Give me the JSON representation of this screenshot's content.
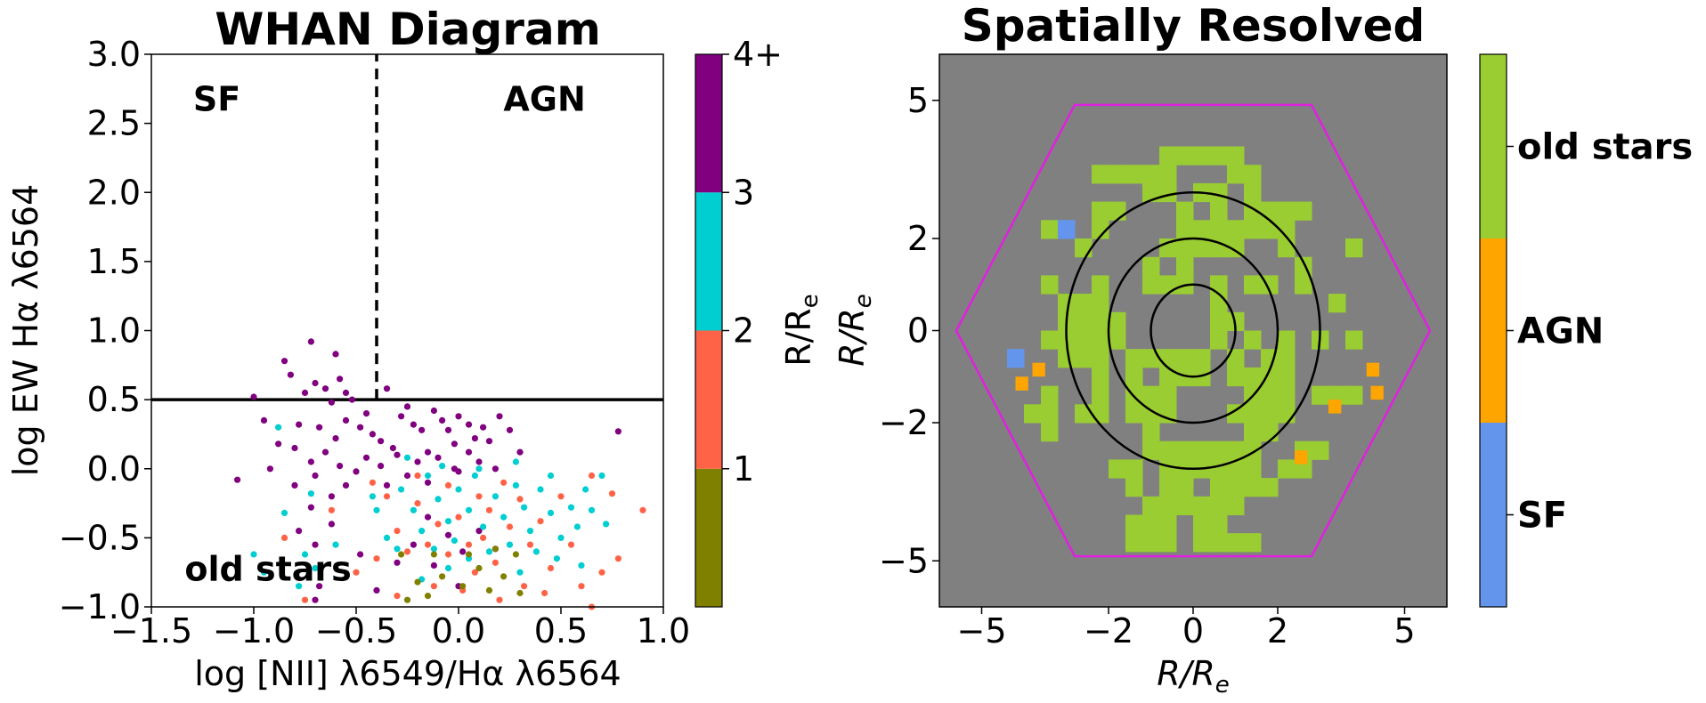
{
  "chart_data": [
    {
      "type": "scatter",
      "title": "WHAN Diagram",
      "xlabel": "log [NII] λ6549/Hα λ6564",
      "ylabel": "log EW Hα λ6564",
      "xlim": [
        -1.5,
        1.0
      ],
      "ylim": [
        -1.0,
        3.0
      ],
      "x_ticks": [
        "−1.5",
        "−1.0",
        "−0.5",
        "0.0",
        "0.5",
        "1.0"
      ],
      "x_tick_values": [
        -1.5,
        -1.0,
        -0.5,
        0.0,
        0.5,
        1.0
      ],
      "y_ticks": [
        "−1.0",
        "−0.5",
        "0.0",
        "0.5",
        "1.0",
        "1.5",
        "2.0",
        "2.5",
        "3.0"
      ],
      "y_tick_values": [
        -1.0,
        -0.5,
        0.0,
        0.5,
        1.0,
        1.5,
        2.0,
        2.5,
        3.0
      ],
      "grid": false,
      "annotations": [
        {
          "text": "SF",
          "color": "#6495ED",
          "x": -1.18,
          "y": 2.68
        },
        {
          "text": "AGN",
          "color": "#FFA500",
          "x": 0.42,
          "y": 2.68
        },
        {
          "text": "old stars",
          "color": "#9ACD32",
          "x": -0.93,
          "y": -0.72
        }
      ],
      "reference_lines": [
        {
          "orientation": "horizontal",
          "y": 0.5,
          "style": "solid"
        },
        {
          "orientation": "vertical",
          "x": -0.4,
          "ylim": [
            0.5,
            3.0
          ],
          "style": "dashed"
        }
      ],
      "colorbar": {
        "label": "R/R_e",
        "colors": [
          "#808000",
          "#FF6347",
          "#00CED1",
          "#800080"
        ],
        "tick_labels": [
          "1",
          "2",
          "3",
          "4+"
        ]
      },
      "series": [
        {
          "color": "#800080",
          "points": [
            [
              -0.72,
              0.92
            ],
            [
              -0.6,
              0.83
            ],
            [
              -0.85,
              0.78
            ],
            [
              -0.82,
              0.68
            ],
            [
              -0.7,
              0.62
            ],
            [
              -0.65,
              0.58
            ],
            [
              -0.58,
              0.65
            ],
            [
              -0.55,
              0.55
            ],
            [
              -0.75,
              0.55
            ],
            [
              -0.62,
              0.48
            ],
            [
              -0.52,
              0.5
            ],
            [
              -0.45,
              0.4
            ],
            [
              -0.35,
              0.58
            ],
            [
              -0.25,
              0.45
            ],
            [
              -1.0,
              0.52
            ],
            [
              -0.95,
              0.35
            ],
            [
              -0.78,
              0.32
            ],
            [
              -0.68,
              0.3
            ],
            [
              -0.6,
              0.22
            ],
            [
              -0.55,
              0.35
            ],
            [
              -0.48,
              0.3
            ],
            [
              -0.42,
              0.25
            ],
            [
              -0.38,
              0.2
            ],
            [
              -0.32,
              0.15
            ],
            [
              -0.28,
              0.38
            ],
            [
              -0.22,
              0.32
            ],
            [
              -0.18,
              0.28
            ],
            [
              -0.12,
              0.42
            ],
            [
              -0.08,
              0.35
            ],
            [
              -0.05,
              0.28
            ],
            [
              0.0,
              0.38
            ],
            [
              0.05,
              0.32
            ],
            [
              0.08,
              0.22
            ],
            [
              0.12,
              0.3
            ],
            [
              0.15,
              0.2
            ],
            [
              0.2,
              0.38
            ],
            [
              0.25,
              0.28
            ],
            [
              0.05,
              0.12
            ],
            [
              -0.02,
              0.18
            ],
            [
              -0.15,
              0.12
            ],
            [
              -0.2,
              0.05
            ],
            [
              -0.3,
              0.1
            ],
            [
              -0.38,
              0.02
            ],
            [
              -0.45,
              0.08
            ],
            [
              -0.5,
              -0.02
            ],
            [
              -0.58,
              0.02
            ],
            [
              -0.65,
              0.12
            ],
            [
              -0.72,
              0.05
            ],
            [
              -0.8,
              0.15
            ],
            [
              -0.88,
              0.18
            ],
            [
              -1.08,
              -0.08
            ],
            [
              -0.92,
              0.0
            ],
            [
              -0.8,
              -0.12
            ],
            [
              -0.7,
              -0.05
            ],
            [
              -0.62,
              -0.2
            ],
            [
              -0.55,
              -0.12
            ],
            [
              -0.1,
              0.08
            ],
            [
              0.1,
              0.05
            ],
            [
              0.18,
              0.0
            ],
            [
              -0.25,
              -0.05
            ],
            [
              -0.35,
              -0.12
            ],
            [
              -0.15,
              -0.1
            ],
            [
              0.0,
              -0.02
            ],
            [
              -0.72,
              -0.28
            ],
            [
              -0.78,
              -0.45
            ],
            [
              -0.7,
              -0.55
            ],
            [
              -0.62,
              -0.4
            ],
            [
              -0.15,
              -0.35
            ],
            [
              -0.05,
              -0.48
            ],
            [
              0.02,
              -0.6
            ],
            [
              -0.22,
              -0.55
            ],
            [
              -0.3,
              -0.68
            ],
            [
              -0.12,
              -0.7
            ],
            [
              0.1,
              -0.45
            ],
            [
              0.18,
              -0.58
            ],
            [
              -0.68,
              -0.85
            ],
            [
              -0.7,
              -0.95
            ],
            [
              -0.4,
              -0.88
            ],
            [
              0.78,
              0.27
            ],
            [
              0.0,
              -0.85
            ],
            [
              -0.48,
              -0.62
            ],
            [
              0.3,
              0.12
            ],
            [
              -0.02,
              0.0
            ]
          ]
        },
        {
          "color": "#00CED1",
          "points": [
            [
              -0.88,
              0.3
            ],
            [
              -0.72,
              -0.18
            ],
            [
              -0.85,
              -0.32
            ],
            [
              -0.75,
              -0.62
            ],
            [
              -0.7,
              -0.72
            ],
            [
              -0.78,
              -0.85
            ],
            [
              -0.6,
              -0.55
            ],
            [
              -0.4,
              -0.3
            ],
            [
              -0.35,
              -0.5
            ],
            [
              -0.28,
              -0.15
            ],
            [
              -0.22,
              -0.3
            ],
            [
              -0.15,
              -0.05
            ],
            [
              -0.1,
              -0.22
            ],
            [
              -0.05,
              -0.38
            ],
            [
              0.0,
              -0.15
            ],
            [
              0.05,
              -0.3
            ],
            [
              0.08,
              -0.05
            ],
            [
              0.12,
              -0.42
            ],
            [
              0.18,
              -0.2
            ],
            [
              0.22,
              -0.35
            ],
            [
              0.28,
              -0.12
            ],
            [
              0.32,
              -0.28
            ],
            [
              0.35,
              -0.45
            ],
            [
              0.4,
              -0.15
            ],
            [
              0.45,
              -0.32
            ],
            [
              0.5,
              -0.5
            ],
            [
              0.55,
              -0.28
            ],
            [
              0.62,
              -0.15
            ],
            [
              0.65,
              -0.3
            ],
            [
              0.7,
              -0.05
            ],
            [
              0.72,
              -0.4
            ],
            [
              0.6,
              -0.7
            ],
            [
              0.48,
              -0.65
            ],
            [
              0.38,
              -0.6
            ],
            [
              0.25,
              -0.55
            ],
            [
              0.15,
              -0.6
            ],
            [
              0.05,
              -0.65
            ],
            [
              -0.05,
              -0.72
            ],
            [
              -0.18,
              -0.8
            ],
            [
              -0.3,
              -0.58
            ],
            [
              -0.12,
              -0.58
            ],
            [
              0.28,
              0.05
            ],
            [
              0.1,
              0.0
            ],
            [
              -0.08,
              0.02
            ],
            [
              -0.25,
              0.08
            ],
            [
              -0.02,
              -0.52
            ],
            [
              0.45,
              -0.05
            ],
            [
              0.58,
              -0.42
            ],
            [
              -0.42,
              -0.2
            ],
            [
              -0.18,
              -0.45
            ],
            [
              0.3,
              -0.75
            ],
            [
              -0.95,
              -0.75
            ],
            [
              -1.0,
              -0.62
            ]
          ]
        },
        {
          "color": "#FF6347",
          "points": [
            [
              -0.42,
              -0.1
            ],
            [
              -0.35,
              -0.2
            ],
            [
              -0.3,
              -0.45
            ],
            [
              -0.25,
              -0.6
            ],
            [
              -0.2,
              -0.25
            ],
            [
              -0.15,
              -0.55
            ],
            [
              -0.1,
              -0.4
            ],
            [
              -0.05,
              -0.62
            ],
            [
              0.0,
              -0.35
            ],
            [
              0.05,
              -0.55
            ],
            [
              0.08,
              -0.75
            ],
            [
              0.12,
              -0.5
            ],
            [
              0.15,
              -0.3
            ],
            [
              0.18,
              -0.68
            ],
            [
              0.22,
              -0.1
            ],
            [
              0.25,
              -0.42
            ],
            [
              0.3,
              -0.22
            ],
            [
              0.35,
              -0.55
            ],
            [
              0.4,
              -0.38
            ],
            [
              0.45,
              -0.72
            ],
            [
              0.5,
              -0.2
            ],
            [
              0.55,
              -0.55
            ],
            [
              0.6,
              -0.85
            ],
            [
              0.65,
              -0.05
            ],
            [
              0.7,
              -0.75
            ],
            [
              0.75,
              -0.18
            ],
            [
              0.78,
              -0.65
            ],
            [
              0.9,
              -0.3
            ],
            [
              -0.3,
              -0.92
            ],
            [
              -0.5,
              -0.75
            ],
            [
              -0.62,
              -0.3
            ],
            [
              -0.75,
              -0.95
            ],
            [
              -0.85,
              -0.5
            ],
            [
              0.02,
              -0.88
            ],
            [
              0.2,
              -0.95
            ],
            [
              0.65,
              -1.0
            ],
            [
              -0.12,
              -0.85
            ],
            [
              0.32,
              -0.85
            ],
            [
              -0.2,
              -0.05
            ],
            [
              0.1,
              -0.2
            ],
            [
              -0.05,
              -0.12
            ],
            [
              0.42,
              -0.9
            ],
            [
              -0.4,
              -0.65
            ]
          ]
        },
        {
          "color": "#808000",
          "points": [
            [
              -0.28,
              -0.62
            ],
            [
              -0.12,
              -0.62
            ],
            [
              -0.2,
              -0.82
            ],
            [
              -0.15,
              -0.92
            ],
            [
              -0.08,
              -0.78
            ],
            [
              0.02,
              -0.85
            ],
            [
              0.1,
              -0.72
            ],
            [
              0.15,
              -0.88
            ],
            [
              0.22,
              -0.78
            ],
            [
              0.28,
              -0.62
            ],
            [
              0.3,
              -0.9
            ],
            [
              -0.25,
              -0.95
            ],
            [
              0.05,
              -0.62
            ],
            [
              0.18,
              -0.58
            ]
          ]
        }
      ]
    },
    {
      "type": "heatmap",
      "title": "Spatially Resolved",
      "xlabel": "R/R_e",
      "ylabel": "R/R_e",
      "xlim": [
        -6,
        6
      ],
      "ylim": [
        -6,
        6
      ],
      "x_ticks": [
        "−5",
        "−2",
        "0",
        "2",
        "5"
      ],
      "x_tick_values": [
        -5,
        -2,
        0,
        2,
        5
      ],
      "y_ticks": [
        "5",
        "2",
        "0",
        "−2",
        "−5"
      ],
      "y_tick_values": [
        5,
        2,
        0,
        -2,
        -5
      ],
      "grid": false,
      "background_color": "#808080",
      "hexagon": {
        "color": "#E020E0",
        "vertices": [
          [
            -5.6,
            0
          ],
          [
            -2.8,
            4.9
          ],
          [
            2.8,
            4.9
          ],
          [
            5.6,
            0
          ],
          [
            2.8,
            -4.9
          ],
          [
            -2.8,
            -4.9
          ]
        ]
      },
      "circles_radii": [
        1.0,
        2.0,
        3.0
      ],
      "classes": [
        {
          "name": "SF",
          "color": "#6495ED"
        },
        {
          "name": "AGN",
          "color": "#FFA500"
        },
        {
          "name": "old stars",
          "color": "#9ACD32"
        }
      ],
      "colorbar": {
        "tick_labels": [
          "SF",
          "AGN",
          "old stars"
        ],
        "colors": [
          "#6495ED",
          "#FFA500",
          "#9ACD32"
        ]
      }
    }
  ]
}
